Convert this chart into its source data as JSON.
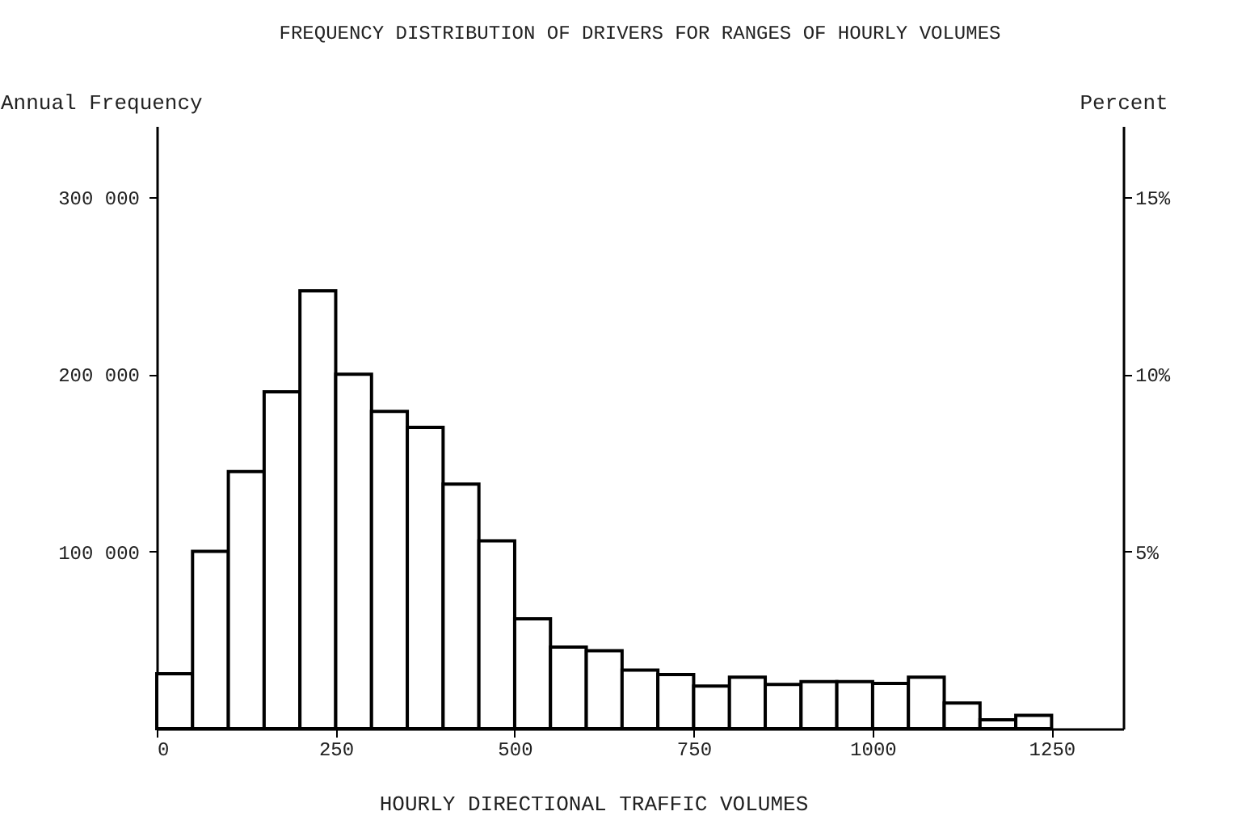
{
  "chart_data": {
    "type": "histogram",
    "title": "FREQUENCY DISTRIBUTION OF DRIVERS FOR RANGES OF HOURLY VOLUMES",
    "xlabel": "HOURLY DIRECTIONAL TRAFFIC VOLUMES",
    "ylabel": "Annual Frequency",
    "y2label": "Percent",
    "bins": [
      0,
      50,
      100,
      150,
      200,
      250,
      300,
      350,
      400,
      450,
      500,
      550,
      600,
      650,
      700,
      750,
      800,
      850,
      900,
      950,
      1000,
      1050,
      1100,
      1150,
      1200,
      1250
    ],
    "values": [
      31000,
      100000,
      145000,
      190000,
      247000,
      200000,
      179000,
      170000,
      138000,
      106000,
      62000,
      46000,
      44000,
      33000,
      30500,
      24000,
      29000,
      25000,
      26500,
      26500,
      25500,
      29000,
      14500,
      5000,
      7500
    ],
    "color": "#000000",
    "xlim": [
      0,
      1350
    ],
    "xticks": [
      0,
      250,
      500,
      750,
      1000,
      1250
    ],
    "ylim": [
      0,
      340000
    ],
    "yticks": [
      {
        "value": 100000,
        "label": "100 000"
      },
      {
        "value": 200000,
        "label": "200 000"
      },
      {
        "value": 300000,
        "label": "300 000"
      }
    ],
    "y2lim": [
      0,
      17
    ],
    "y2ticks": [
      {
        "value": 5,
        "label": "5%"
      },
      {
        "value": 10,
        "label": "10%"
      },
      {
        "value": 15,
        "label": "15%"
      }
    ],
    "grid": false
  }
}
